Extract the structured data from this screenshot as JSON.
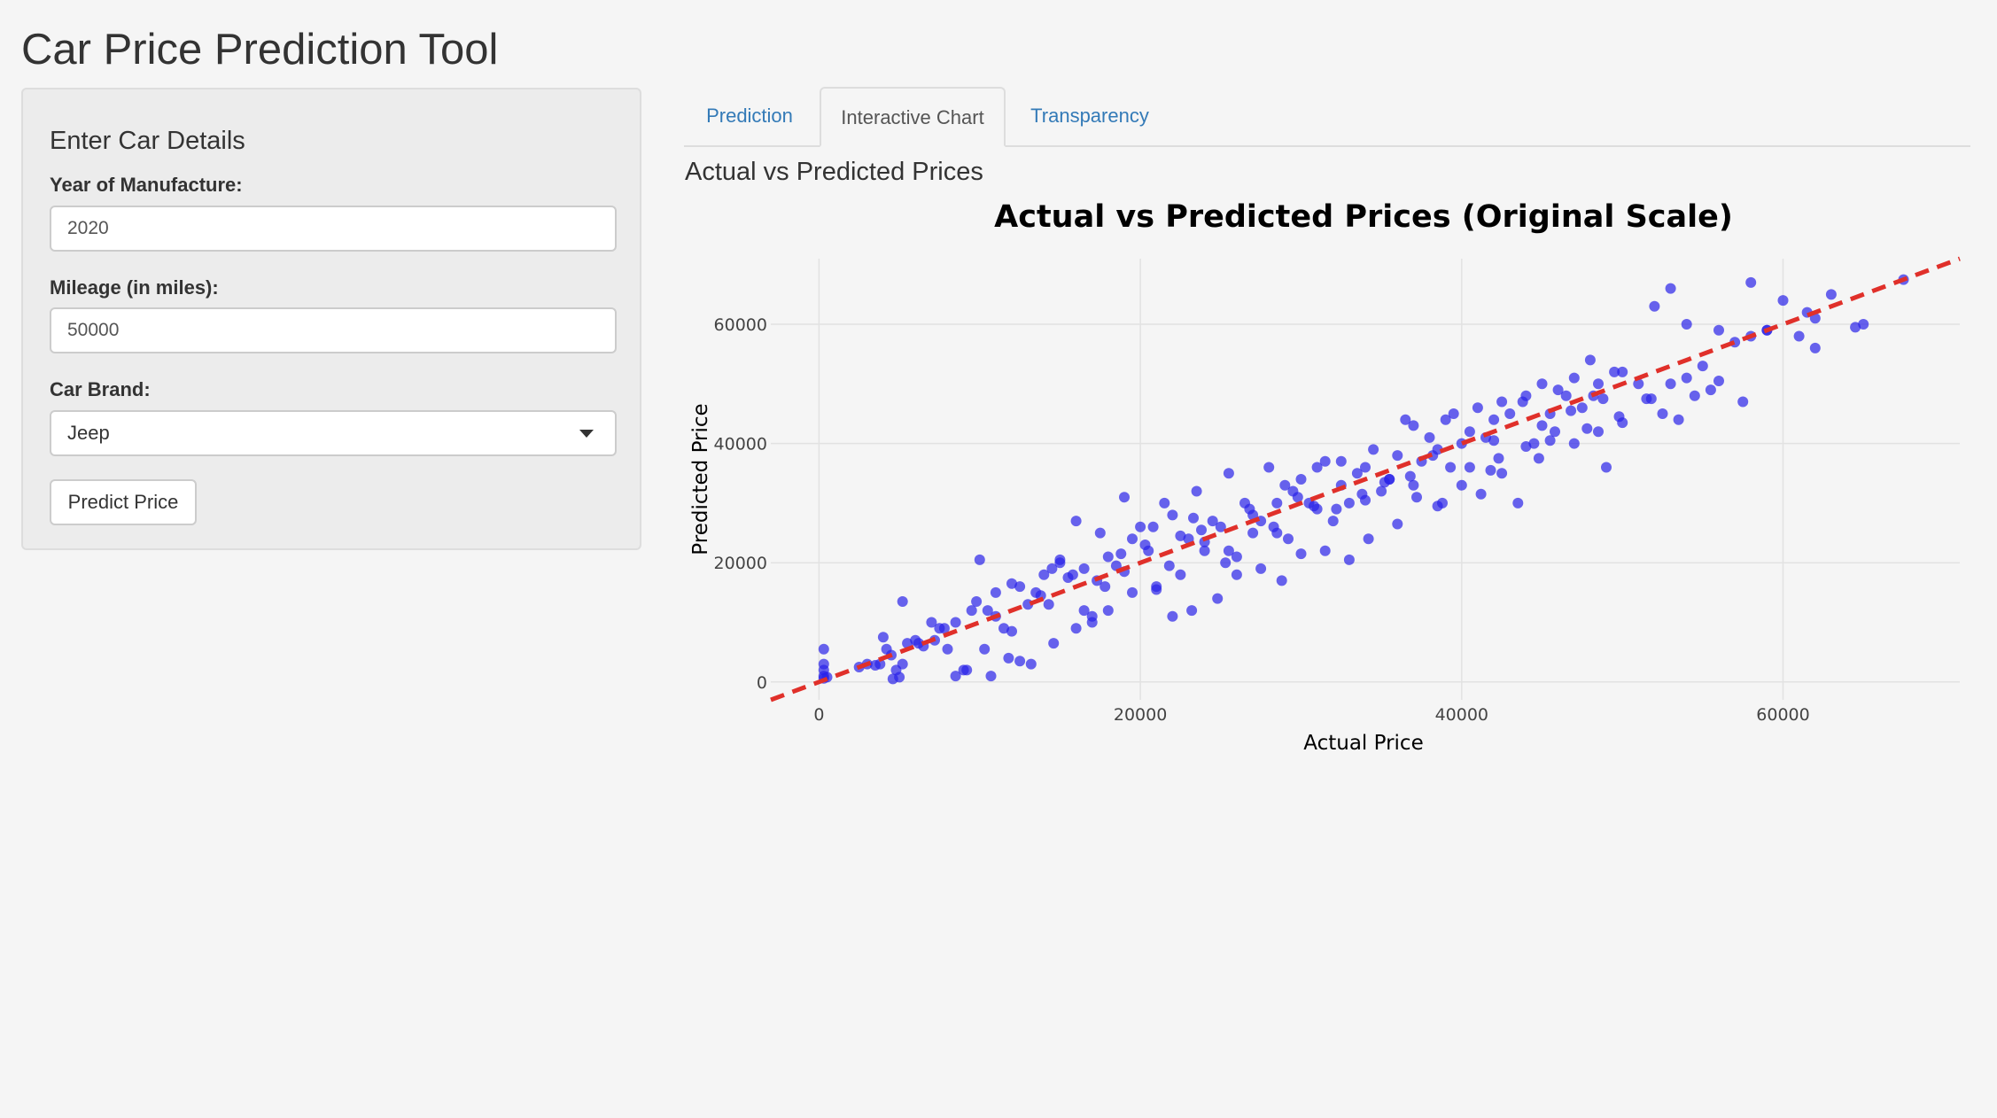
{
  "app": {
    "title": "Car Price Prediction Tool"
  },
  "sidebar": {
    "heading": "Enter Car Details",
    "year_label": "Year of Manufacture:",
    "year_value": "2020",
    "mileage_label": "Mileage (in miles):",
    "mileage_value": "50000",
    "brand_label": "Car Brand:",
    "brand_value": "Jeep",
    "predict_button": "Predict Price"
  },
  "tabs": [
    {
      "label": "Prediction",
      "active": false
    },
    {
      "label": "Interactive Chart",
      "active": true
    },
    {
      "label": "Transparency",
      "active": false
    }
  ],
  "main": {
    "section_title": "Actual vs Predicted Prices"
  },
  "colors": {
    "points": "#2a22e8",
    "reference_line": "#e0302a",
    "link": "#337ab7"
  },
  "chart_data": {
    "type": "scatter",
    "title": "Actual vs Predicted Prices (Original Scale)",
    "xlabel": "Actual Price",
    "ylabel": "Predicted Price",
    "xlim": [
      -3000,
      71000
    ],
    "ylim": [
      -3000,
      71000
    ],
    "xticks": [
      0,
      20000,
      40000,
      60000
    ],
    "yticks": [
      0,
      20000,
      40000,
      60000
    ],
    "xtick_labels": [
      "0",
      "20000",
      "40000",
      "60000"
    ],
    "ytick_labels": [
      "0",
      "20000",
      "40000",
      "60000"
    ],
    "grid": true,
    "reference_line": {
      "style": "dashed",
      "from": [
        -3000,
        -3000
      ],
      "to": [
        71000,
        71000
      ]
    },
    "series": [
      {
        "x": [
          300,
          300,
          300,
          300,
          300,
          500,
          2500,
          3000,
          3500,
          4000,
          4200,
          4500,
          4800,
          5000,
          5200,
          5500,
          6000,
          6500,
          7000,
          7500,
          8000,
          8500,
          9000,
          9500,
          10000,
          10500,
          11000,
          11500,
          12000,
          12500,
          13000,
          13500,
          14000,
          14500,
          15000,
          15500,
          16000,
          16500,
          17000,
          17500,
          18000,
          18500,
          19000,
          19500,
          20000,
          20500,
          21000,
          21500,
          22000,
          22500,
          23000,
          23500,
          24000,
          24500,
          25000,
          25500,
          26000,
          26500,
          27000,
          27500,
          28000,
          28500,
          29000,
          29500,
          30000,
          30500,
          31000,
          31500,
          32000,
          32500,
          33000,
          33500,
          34000,
          34500,
          35000,
          35500,
          36000,
          36500,
          37000,
          37500,
          38000,
          38500,
          39000,
          39500,
          40000,
          40500,
          41000,
          41500,
          42000,
          42500,
          43000,
          43500,
          44000,
          44500,
          45000,
          45500,
          46000,
          46500,
          47000,
          47500,
          48000,
          48500,
          49000,
          49500,
          50000,
          51000,
          52000,
          53000,
          54000,
          55000,
          56000,
          57000,
          58000,
          59000,
          60000,
          61000,
          62000,
          63000,
          65000,
          67500,
          4600,
          5200,
          8500,
          9200,
          10700,
          12500,
          13200,
          14600,
          16000,
          17000,
          18000,
          19500,
          21000,
          22000,
          23200,
          24800,
          26000,
          27500,
          28800,
          30000,
          31500,
          33000,
          34200,
          36000,
          37200,
          38500,
          40000,
          41200,
          42500,
          44000,
          45500,
          47000,
          48500,
          50000,
          51500,
          53000,
          54500,
          56000,
          9800,
          11000,
          12000,
          15000,
          16500,
          17800,
          19000,
          20800,
          22500,
          24000,
          25500,
          27000,
          28500,
          29800,
          31000,
          32500,
          34000,
          35500,
          37000,
          38800,
          40500,
          42000,
          43800,
          45000,
          46800,
          48200,
          49800,
          51800,
          53500,
          55500,
          57500,
          59000,
          61500,
          64500,
          6200,
          7800,
          10300,
          13800,
          15800,
          18800,
          21800,
          23800,
          26800,
          29200,
          32200,
          35200,
          38200,
          41800,
          44800,
          47800,
          52500,
          58000,
          3800,
          7200,
          11800,
          14300,
          17300,
          20300,
          23300,
          25300,
          28300,
          30800,
          33800,
          36800,
          39300,
          42300,
          45800,
          48800,
          54000,
          62000
        ],
        "y": [
          600,
          1000,
          2000,
          3000,
          5500,
          800,
          2500,
          3000,
          2800,
          7500,
          5500,
          4500,
          2000,
          800,
          13500,
          6500,
          7000,
          6000,
          10000,
          9000,
          5500,
          10000,
          2000,
          12000,
          20500,
          12000,
          11000,
          9000,
          8500,
          16000,
          13000,
          15000,
          18000,
          19000,
          20000,
          17500,
          27000,
          12000,
          11000,
          25000,
          21000,
          19500,
          31000,
          24000,
          26000,
          22000,
          16000,
          30000,
          28000,
          18000,
          24000,
          32000,
          22000,
          27000,
          26000,
          35000,
          21000,
          30000,
          25000,
          27000,
          36000,
          30000,
          33000,
          32000,
          34000,
          30000,
          36000,
          37000,
          27000,
          33000,
          30000,
          35000,
          36000,
          39000,
          32000,
          34000,
          38000,
          44000,
          43000,
          37000,
          41000,
          39000,
          44000,
          45000,
          40000,
          42000,
          46000,
          41000,
          44000,
          47000,
          45000,
          30000,
          48000,
          40000,
          50000,
          45000,
          49000,
          48000,
          51000,
          46000,
          54000,
          50000,
          36000,
          52000,
          52000,
          50000,
          63000,
          66000,
          60000,
          53000,
          59000,
          57000,
          67000,
          59000,
          64000,
          58000,
          61000,
          65000,
          60000,
          67500,
          500,
          3000,
          1000,
          2000,
          1000,
          3500,
          3000,
          6500,
          9000,
          10000,
          12000,
          15000,
          15500,
          11000,
          12000,
          14000,
          18000,
          19000,
          17000,
          21500,
          22000,
          20500,
          24000,
          26500,
          31000,
          29500,
          33000,
          31500,
          35000,
          39500,
          40500,
          40000,
          42000,
          43500,
          47500,
          50000,
          48000,
          50500,
          13500,
          15000,
          16500,
          20500,
          19000,
          16000,
          18500,
          26000,
          24500,
          23500,
          22000,
          28000,
          25000,
          31000,
          29000,
          37000,
          30500,
          34000,
          33000,
          30000,
          36000,
          40500,
          47000,
          43000,
          45500,
          48000,
          44500,
          47500,
          44000,
          49000,
          47000,
          59000,
          62000,
          59500,
          6500,
          9000,
          5500,
          14500,
          18000,
          21500,
          19500,
          25500,
          29000,
          24000,
          29000,
          33500,
          38000,
          35500,
          37500,
          42500,
          45000,
          58000,
          3000,
          7000,
          4000,
          13000,
          17000,
          23000,
          27500,
          20000,
          26000,
          29500,
          31500,
          34500,
          36000,
          37500,
          42000,
          47500,
          51000,
          56000
        ]
      }
    ]
  }
}
